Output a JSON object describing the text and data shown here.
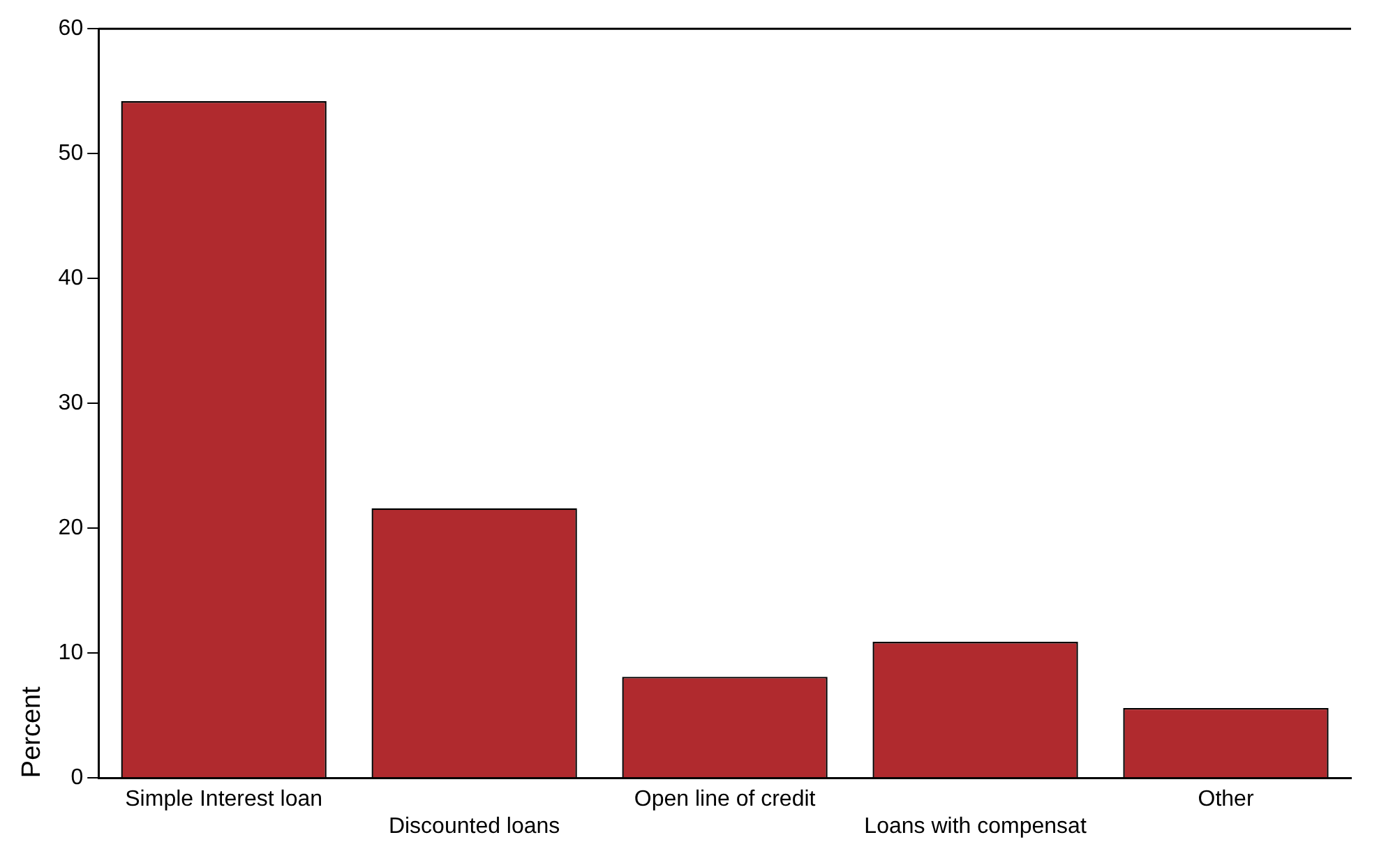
{
  "chart_data": {
    "type": "bar",
    "ylabel": "Percent",
    "categories": [
      "Simple Interest loan",
      "Discounted loans",
      "Open line of credit",
      "Loans with compensat",
      "Other"
    ],
    "values": [
      54.2,
      21.6,
      8.1,
      10.9,
      5.6
    ],
    "color": "#b02a2e",
    "ylim": [
      0,
      60
    ],
    "yticks": [
      0,
      10,
      20,
      30,
      40,
      50,
      60
    ],
    "grid": false,
    "legend": false
  }
}
